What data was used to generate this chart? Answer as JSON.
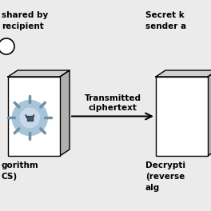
{
  "bg_color": "#ebebeb",
  "arrow_label_line1": "Transmitted",
  "arrow_label_line2": "ciphertext",
  "top_left_text1": "shared by",
  "top_left_text2": "recipient",
  "top_right_text1": "Secret k",
  "top_right_text2": "sender a",
  "bottom_left_text1": "gorithm",
  "bottom_left_text2": "CS)",
  "bottom_right_text1": "Decrypti",
  "bottom_right_text2": "(reverse",
  "bottom_right_text3": "alg",
  "box_face": "#ffffff",
  "box_edge": "#000000",
  "box_depth_color": "#b0b0b0",
  "box_top_color": "#d0d0d0",
  "gear_outer_color": "#a8c4d8",
  "gear_inner_color": "#c8d8e8",
  "gear_line_color": "#7090a8",
  "arrow_color": "#000000",
  "text_color": "#000000",
  "fontsize_labels": 7.5,
  "fontsize_arrow": 7.5
}
